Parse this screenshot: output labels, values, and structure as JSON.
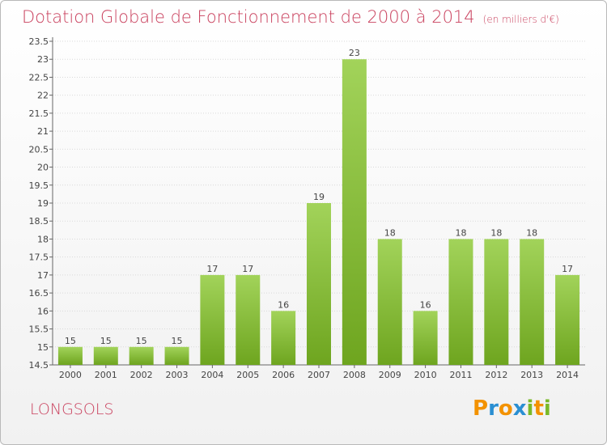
{
  "title": "Dotation Globale de Fonctionnement de 2000 à 2014",
  "subtitle": "(en milliers d'€)",
  "town": "LONGSOLS",
  "logo": {
    "letters": [
      "P",
      "r",
      "o",
      "x",
      "i",
      "t",
      "i"
    ],
    "colors": [
      "#f39200",
      "#2a8fd2",
      "#f39200",
      "#2a8fd2",
      "#7ab928",
      "#f39200",
      "#7ab928"
    ]
  },
  "colors": {
    "bar_light": "#a2d35a",
    "bar_dark": "#6ea51f",
    "grid": "#d9d9d9",
    "axis": "#666666",
    "title": "#c9405d"
  },
  "chart_data": {
    "type": "bar",
    "title": "Dotation Globale de Fonctionnement de 2000 à 2014",
    "subtitle": "(en milliers d'€)",
    "xlabel": "",
    "ylabel": "",
    "categories": [
      "2000",
      "2001",
      "2002",
      "2003",
      "2004",
      "2005",
      "2006",
      "2007",
      "2008",
      "2009",
      "2010",
      "2011",
      "2012",
      "2013",
      "2014"
    ],
    "values": [
      15,
      15,
      15,
      15,
      17,
      17,
      16,
      19,
      23,
      18,
      16,
      18,
      18,
      18,
      17
    ],
    "ylim": [
      14.5,
      23.5
    ],
    "yticks": [
      14.5,
      15,
      15.5,
      16,
      16.5,
      17,
      17.5,
      18,
      18.5,
      19,
      19.5,
      20,
      20.5,
      21,
      21.5,
      22,
      22.5,
      23,
      23.5
    ],
    "grid": true
  }
}
